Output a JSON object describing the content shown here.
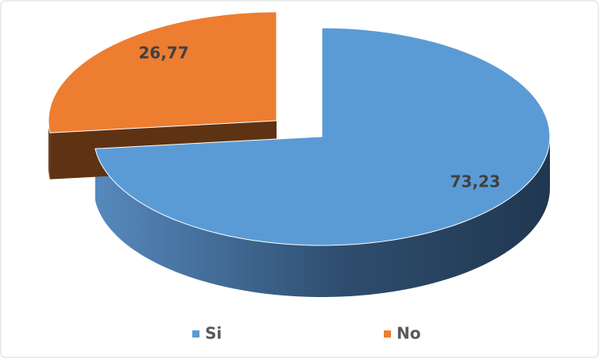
{
  "chart_data": {
    "type": "pie3d",
    "categories": [
      "Si",
      "No"
    ],
    "values": [
      73.23,
      26.77
    ],
    "value_labels": [
      "73,23",
      "26,77"
    ],
    "colors": [
      "#5b9bd5",
      "#ed7d31"
    ],
    "legend": "bottom"
  }
}
